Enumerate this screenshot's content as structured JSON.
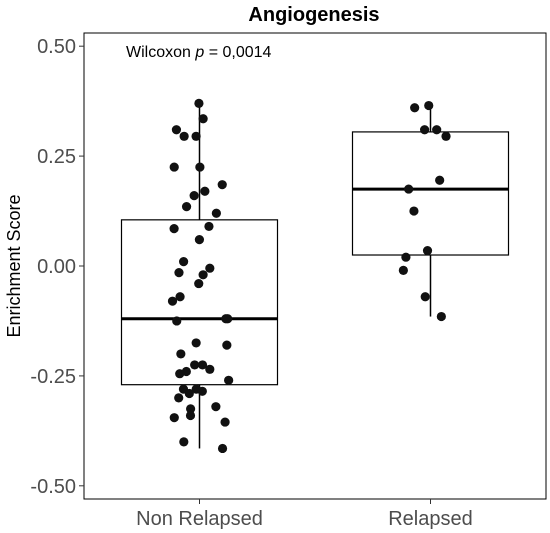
{
  "chart_data": {
    "type": "box",
    "title": "Angiogenesis",
    "ylabel": "Enrichment Score",
    "xlabel": "",
    "ylim": [
      -0.53,
      0.53
    ],
    "yticks": [
      0.5,
      0.25,
      0.0,
      -0.25,
      -0.5
    ],
    "ytick_labels": [
      "0.50",
      "0.25",
      "0.00",
      "-0.25",
      "-0.50"
    ],
    "grid": false,
    "annotation": {
      "prefix": "Wilcoxon ",
      "italic": "p",
      "suffix": " = 0,0014"
    },
    "categories": [
      "Non Relapsed",
      "Relapsed"
    ],
    "boxes": [
      {
        "category": "Non Relapsed",
        "whisker_low": -0.415,
        "q1": -0.27,
        "median": -0.12,
        "q3": 0.105,
        "whisker_high": 0.37
      },
      {
        "category": "Relapsed",
        "whisker_low": -0.115,
        "q1": 0.025,
        "median": 0.175,
        "q3": 0.305,
        "whisker_high": 0.365
      }
    ],
    "points": [
      [
        0.37,
        0.335,
        0.31,
        0.295,
        0.295,
        0.225,
        0.225,
        0.185,
        0.17,
        0.16,
        0.135,
        0.12,
        0.09,
        0.085,
        0.06,
        0.01,
        -0.005,
        -0.015,
        -0.02,
        -0.04,
        -0.07,
        -0.08,
        -0.12,
        -0.12,
        -0.125,
        -0.175,
        -0.18,
        -0.2,
        -0.225,
        -0.225,
        -0.235,
        -0.24,
        -0.245,
        -0.26,
        -0.28,
        -0.28,
        -0.285,
        -0.29,
        -0.3,
        -0.32,
        -0.325,
        -0.34,
        -0.345,
        -0.355,
        -0.4,
        -0.415
      ],
      [
        0.365,
        0.36,
        0.31,
        0.31,
        0.295,
        0.195,
        0.175,
        0.125,
        0.035,
        0.02,
        -0.01,
        -0.07,
        -0.115
      ]
    ]
  }
}
